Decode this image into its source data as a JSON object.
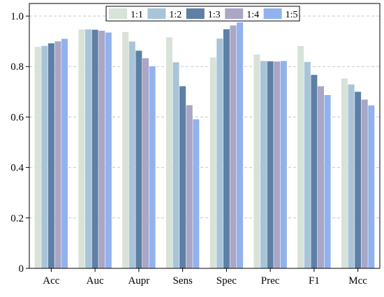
{
  "chart_data": {
    "type": "bar",
    "categories": [
      "Acc",
      "Auc",
      "Aupr",
      "Sens",
      "Spec",
      "Prec",
      "F1",
      "Mcc"
    ],
    "series": [
      {
        "name": "1:1",
        "color": "#d8e2d8",
        "values": [
          0.878,
          0.947,
          0.937,
          0.916,
          0.836,
          0.848,
          0.881,
          0.753
        ]
      },
      {
        "name": "1:2",
        "color": "#a8c4d8",
        "values": [
          0.882,
          0.947,
          0.899,
          0.817,
          0.911,
          0.822,
          0.818,
          0.729
        ]
      },
      {
        "name": "1:3",
        "color": "#5e80a6",
        "values": [
          0.892,
          0.946,
          0.863,
          0.722,
          0.948,
          0.821,
          0.767,
          0.7
        ]
      },
      {
        "name": "1:4",
        "color": "#aaa6c6",
        "values": [
          0.9,
          0.942,
          0.833,
          0.647,
          0.963,
          0.82,
          0.722,
          0.669
        ]
      },
      {
        "name": "1:5",
        "color": "#92b2ee",
        "values": [
          0.91,
          0.935,
          0.801,
          0.591,
          0.975,
          0.822,
          0.687,
          0.646
        ]
      }
    ],
    "ylim": [
      0,
      1.05
    ],
    "yticks": [
      0,
      0.2,
      0.4,
      0.6,
      0.8,
      1.0
    ],
    "ytick_labels": [
      "0",
      "0.2",
      "0.4",
      "0.6",
      "0.8",
      "1.0"
    ],
    "grid": true,
    "legend_position": "top-center"
  }
}
